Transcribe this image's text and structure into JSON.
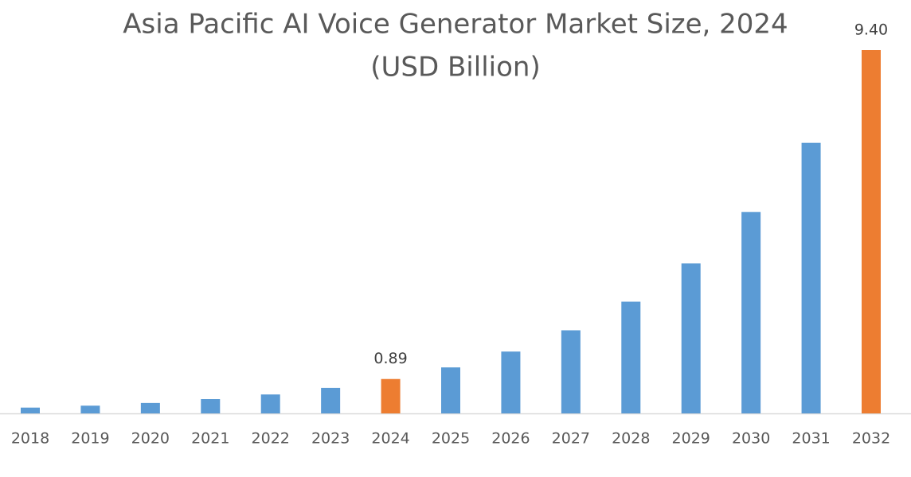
{
  "chart_data": {
    "type": "bar",
    "title": "Asia Pacific AI Voice Generator Market Size, 2024",
    "subtitle": "(USD Billion)",
    "categories": [
      "2018",
      "2019",
      "2020",
      "2021",
      "2022",
      "2023",
      "2024",
      "2025",
      "2026",
      "2027",
      "2028",
      "2029",
      "2030",
      "2031",
      "2032"
    ],
    "values": [
      0.15,
      0.2,
      0.27,
      0.37,
      0.49,
      0.66,
      0.89,
      1.19,
      1.6,
      2.15,
      2.89,
      3.88,
      5.21,
      7.0,
      9.4
    ],
    "value_labels": [
      null,
      null,
      null,
      null,
      null,
      null,
      "0.89",
      null,
      null,
      null,
      null,
      null,
      null,
      null,
      "9.40"
    ],
    "colors": [
      "#5b9bd5",
      "#5b9bd5",
      "#5b9bd5",
      "#5b9bd5",
      "#5b9bd5",
      "#5b9bd5",
      "#ed7d31",
      "#5b9bd5",
      "#5b9bd5",
      "#5b9bd5",
      "#5b9bd5",
      "#5b9bd5",
      "#5b9bd5",
      "#5b9bd5",
      "#ed7d31"
    ],
    "ylim": [
      0,
      9.4
    ]
  }
}
